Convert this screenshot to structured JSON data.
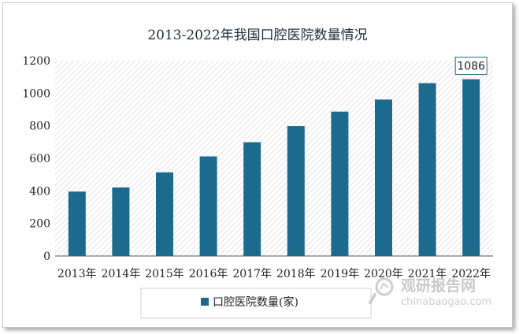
{
  "chart_data": {
    "type": "bar",
    "title": "2013-2022年我国口腔医院数量情况",
    "categories": [
      "2013年",
      "2014年",
      "2015年",
      "2016年",
      "2017年",
      "2018年",
      "2019年",
      "2020年",
      "2021年",
      "2022年"
    ],
    "series": [
      {
        "name": "口腔医院数量(家)",
        "values": [
          396,
          421,
          514,
          612,
          699,
          798,
          887,
          961,
          1062,
          1086
        ],
        "color": "#1c6b8e"
      }
    ],
    "ylim": [
      0,
      1200
    ],
    "yticks": [
      0,
      200,
      400,
      600,
      800,
      1000,
      1200
    ],
    "grid": false,
    "plot_background": "diagonal-hatch",
    "legend_position": "bottom",
    "annotations": [
      {
        "category": "2022年",
        "text": "1086"
      }
    ],
    "xlabel": "",
    "ylabel": ""
  },
  "watermark": {
    "icon": "chinabaogao-logo-icon",
    "text": "观研报告网",
    "url": "chinabaogao.com"
  }
}
